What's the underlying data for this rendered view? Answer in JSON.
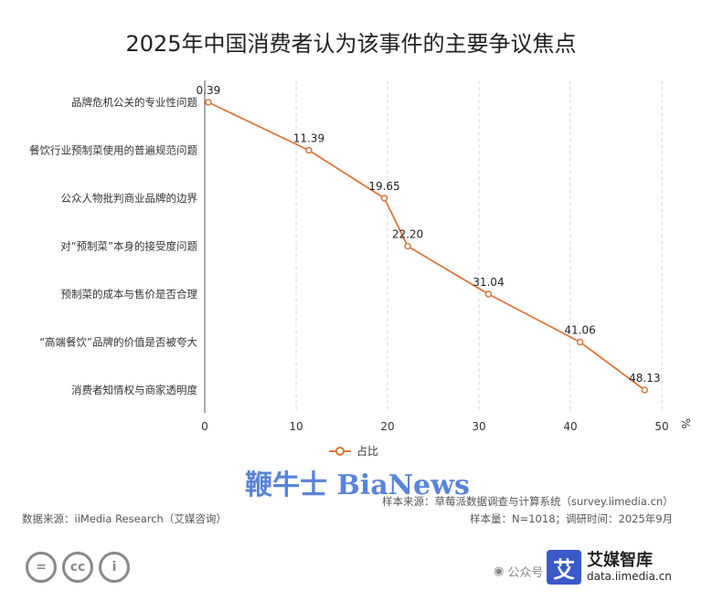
{
  "chart_data": {
    "type": "line",
    "title": "2025年中国消费者认为该事件的主要争议焦点",
    "categories": [
      "品牌危机公关的专业性问题",
      "餐饮行业预制菜使用的普遍规范问题",
      "公众人物批判商业品牌的边界",
      "对“预制菜”本身的接受度问题",
      "预制菜的成本与售价是否合理",
      "“高端餐饮”品牌的价值是否被夸大",
      "消费者知情权与商家透明度"
    ],
    "series": [
      {
        "name": "占比",
        "values": [
          0.39,
          11.39,
          19.65,
          22.2,
          31.04,
          41.06,
          48.13
        ]
      }
    ],
    "value_labels": [
      "0.39",
      "11.39",
      "19.65",
      "22.20",
      "31.04",
      "41.06",
      "48.13"
    ],
    "x_ticks": [
      "0",
      "10",
      "20",
      "30",
      "40",
      "50"
    ],
    "xlim": [
      0,
      50
    ],
    "unit": "%",
    "grid": true,
    "legend": "bottom",
    "color": "#d9773a"
  },
  "watermark": "鞭牛士 BiaNews",
  "footer": {
    "sample_source": "样本来源：草莓派数据调查与计算系统（survey.iimedia.cn）",
    "data_source": "数据来源：iiMedia Research（艾媒咨询）",
    "sample_size": "样本量：N=1018；调研时间：2025年9月"
  },
  "license_icons": [
    "equal-icon",
    "cc-icon",
    "person-icon"
  ],
  "license_text": [
    "=",
    "cc",
    "i"
  ],
  "wechat": "公众号",
  "brand": {
    "logo_char": "艾",
    "name": "艾媒智库",
    "url": "data.iimedia.cn"
  }
}
